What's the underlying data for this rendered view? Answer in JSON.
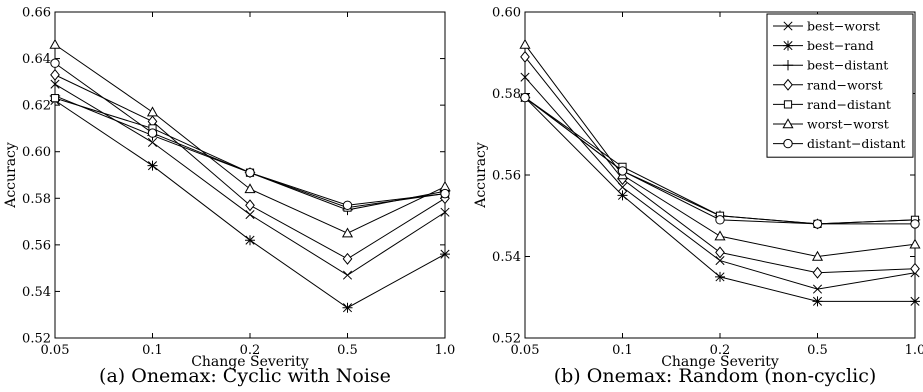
{
  "chart_data": [
    {
      "type": "line",
      "caption": "(a) Onemax: Cyclic with Noise",
      "xlabel": "Change Severity",
      "ylabel": "Accuracy",
      "categories": [
        "0.05",
        "0.1",
        "0.2",
        "0.5",
        "1.0"
      ],
      "ylim": [
        0.52,
        0.66
      ],
      "yticks": [
        "0.52",
        "0.54",
        "0.56",
        "0.58",
        "0.60",
        "0.62",
        "0.64",
        "0.66"
      ],
      "grid": false,
      "series": [
        {
          "name": "best−worst",
          "marker": "x",
          "values": [
            0.629,
            0.604,
            0.573,
            0.547,
            0.574
          ]
        },
        {
          "name": "best−rand",
          "marker": "star",
          "values": [
            0.622,
            0.594,
            0.562,
            0.533,
            0.556
          ]
        },
        {
          "name": "best−distant",
          "marker": "plus",
          "values": [
            0.624,
            0.607,
            0.591,
            0.575,
            0.583
          ]
        },
        {
          "name": "rand−worst",
          "marker": "diamond",
          "values": [
            0.633,
            0.613,
            0.577,
            0.554,
            0.58
          ]
        },
        {
          "name": "rand−distant",
          "marker": "square",
          "values": [
            0.623,
            0.61,
            0.591,
            0.576,
            0.582
          ]
        },
        {
          "name": "worst−worst",
          "marker": "triangle",
          "values": [
            0.646,
            0.617,
            0.584,
            0.565,
            0.585
          ]
        },
        {
          "name": "distant−distant",
          "marker": "circle",
          "values": [
            0.638,
            0.608,
            0.591,
            0.577,
            0.582
          ]
        }
      ]
    },
    {
      "type": "line",
      "caption": "(b) Onemax: Random (non-cyclic)",
      "xlabel": "Change Severity",
      "ylabel": "Accuracy",
      "categories": [
        "0.05",
        "0.1",
        "0.2",
        "0.5",
        "1.0"
      ],
      "ylim": [
        0.52,
        0.6
      ],
      "yticks": [
        "0.52",
        "0.54",
        "0.56",
        "0.58",
        "0.60"
      ],
      "grid": false,
      "legend_position": "top-right",
      "series": [
        {
          "name": "best−worst",
          "marker": "x",
          "values": [
            0.584,
            0.557,
            0.539,
            0.532,
            0.536
          ]
        },
        {
          "name": "best−rand",
          "marker": "star",
          "values": [
            0.579,
            0.555,
            0.535,
            0.529,
            0.529
          ]
        },
        {
          "name": "best−distant",
          "marker": "plus",
          "values": [
            0.579,
            0.561,
            0.55,
            0.548,
            0.549
          ]
        },
        {
          "name": "rand−worst",
          "marker": "diamond",
          "values": [
            0.589,
            0.559,
            0.541,
            0.536,
            0.537
          ]
        },
        {
          "name": "rand−distant",
          "marker": "square",
          "values": [
            0.579,
            0.562,
            0.55,
            0.548,
            0.549
          ]
        },
        {
          "name": "worst−worst",
          "marker": "triangle",
          "values": [
            0.592,
            0.56,
            0.545,
            0.54,
            0.543
          ]
        },
        {
          "name": "distant−distant",
          "marker": "circle",
          "values": [
            0.579,
            0.561,
            0.549,
            0.548,
            0.548
          ]
        }
      ]
    }
  ]
}
